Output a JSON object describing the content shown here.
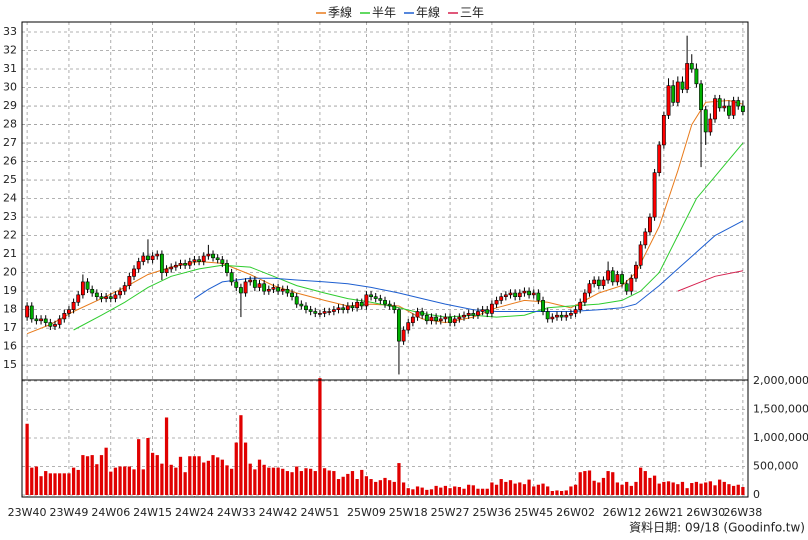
{
  "chart_data": {
    "type": "candlestick",
    "legend": "top",
    "grid": true,
    "footer": "資料日期: 09/18 (Goodinfo.tw)",
    "up_color": "#ff0000",
    "down_color": "#00b000",
    "xlim": [
      -1.1,
      155.1
    ],
    "xticks": [
      {
        "value": 0,
        "label": "23W40"
      },
      {
        "value": 9,
        "label": "23W49"
      },
      {
        "value": 18,
        "label": "24W06"
      },
      {
        "value": 27,
        "label": "24W15"
      },
      {
        "value": 36,
        "label": "24W24"
      },
      {
        "value": 45,
        "label": "24W33"
      },
      {
        "value": 54,
        "label": "24W42"
      },
      {
        "value": 63,
        "label": "24W51"
      },
      {
        "value": 73,
        "label": "25W09"
      },
      {
        "value": 82,
        "label": "25W18"
      },
      {
        "value": 91,
        "label": "25W27"
      },
      {
        "value": 100,
        "label": "25W36"
      },
      {
        "value": 109,
        "label": "25W45"
      },
      {
        "value": 118,
        "label": "26W02"
      },
      {
        "value": 128,
        "label": "26W12"
      },
      {
        "value": 137,
        "label": "26W21"
      },
      {
        "value": 146,
        "label": "26W30"
      },
      {
        "value": 154,
        "label": "26W38"
      }
    ],
    "ylim": [
      14.2,
      33.54
    ],
    "yticks": [
      15,
      16,
      17,
      18,
      19,
      20,
      21,
      22,
      23,
      24,
      25,
      26,
      27,
      28,
      29,
      30,
      31,
      32,
      33
    ],
    "open": [
      17.6,
      18.2,
      17.5,
      17.4,
      17.5,
      17.3,
      17.1,
      17.2,
      17.5,
      17.8,
      18.0,
      18.4,
      18.8,
      19.5,
      19.1,
      18.9,
      18.7,
      18.6,
      18.7,
      18.6,
      18.8,
      19.0,
      19.3,
      19.8,
      20.2,
      20.6,
      20.9,
      20.7,
      20.9,
      21.0,
      20.0,
      20.2,
      20.3,
      20.4,
      20.5,
      20.4,
      20.6,
      20.7,
      20.6,
      20.9,
      21.0,
      20.8,
      20.7,
      20.5,
      20.0,
      19.5,
      19.2,
      18.9,
      19.5,
      19.6,
      19.2,
      19.4,
      19.0,
      19.1,
      19.2,
      19.0,
      19.1,
      18.9,
      18.7,
      18.3,
      18.2,
      18.0,
      17.9,
      17.8,
      17.8,
      17.9,
      17.9,
      18.0,
      18.1,
      18.0,
      18.2,
      18.1,
      18.4,
      18.2,
      18.8,
      18.7,
      18.6,
      18.5,
      18.3,
      18.2,
      18.0,
      16.3,
      16.9,
      17.3,
      17.6,
      17.9,
      17.7,
      17.4,
      17.6,
      17.4,
      17.5,
      17.6,
      17.3,
      17.5,
      17.6,
      17.7,
      17.8,
      17.7,
      17.9,
      18.0,
      17.8,
      18.3,
      18.5,
      18.7,
      18.8,
      18.9,
      18.7,
      18.9,
      19.0,
      18.8,
      18.9,
      18.5,
      17.9,
      17.5,
      17.6,
      17.7,
      17.6,
      17.7,
      17.8,
      18.0,
      18.4,
      18.9,
      19.4,
      19.6,
      19.3,
      19.6,
      20.1,
      19.5,
      19.9,
      19.4,
      19.0,
      19.7,
      20.4,
      21.5,
      22.2,
      23.0,
      25.4,
      26.9,
      28.5,
      30.1,
      29.2,
      30.3,
      29.9,
      31.3,
      31.0,
      30.2,
      28.8,
      27.6,
      28.3,
      29.4,
      28.9,
      29.0,
      28.5,
      29.3,
      29.0
    ],
    "high": [
      18.4,
      18.4,
      17.7,
      17.7,
      17.7,
      17.5,
      17.4,
      17.7,
      18.0,
      18.2,
      18.6,
      19.0,
      19.9,
      19.7,
      19.3,
      19.1,
      18.9,
      18.9,
      18.9,
      19.0,
      19.2,
      19.5,
      20.0,
      20.4,
      20.8,
      21.1,
      21.8,
      21.1,
      21.2,
      21.2,
      20.4,
      20.5,
      20.6,
      20.7,
      20.7,
      20.8,
      20.9,
      20.9,
      21.1,
      21.5,
      21.2,
      21.0,
      20.9,
      20.7,
      20.2,
      19.7,
      19.4,
      19.7,
      19.8,
      19.8,
      19.6,
      19.6,
      19.3,
      19.4,
      19.4,
      19.3,
      19.3,
      19.1,
      18.9,
      18.5,
      18.4,
      18.2,
      18.1,
      18.0,
      18.1,
      18.1,
      18.2,
      18.3,
      18.3,
      18.4,
      18.4,
      18.6,
      18.6,
      19.0,
      19.0,
      18.9,
      18.8,
      18.7,
      18.5,
      18.4,
      18.1,
      17.1,
      17.5,
      17.8,
      18.1,
      18.1,
      17.9,
      17.8,
      17.8,
      17.7,
      17.8,
      17.8,
      17.7,
      17.8,
      17.9,
      18.0,
      18.0,
      18.1,
      18.2,
      18.2,
      18.5,
      18.7,
      18.9,
      19.0,
      19.1,
      19.1,
      19.1,
      19.2,
      19.2,
      19.1,
      19.1,
      18.7,
      18.1,
      17.8,
      17.9,
      17.9,
      17.9,
      18.0,
      18.2,
      18.6,
      19.1,
      19.6,
      19.8,
      19.8,
      19.8,
      20.6,
      20.3,
      20.1,
      20.1,
      19.6,
      19.9,
      20.6,
      21.7,
      22.4,
      23.2,
      25.6,
      27.1,
      28.7,
      30.5,
      30.4,
      30.6,
      30.6,
      32.8,
      31.8,
      31.3,
      30.4,
      29.0,
      28.6,
      29.6,
      29.6,
      29.4,
      29.3,
      29.5,
      29.5,
      29.3
    ],
    "low": [
      17.4,
      17.3,
      17.2,
      17.2,
      17.1,
      16.9,
      16.9,
      17.0,
      17.3,
      17.6,
      17.8,
      18.2,
      18.6,
      18.9,
      18.7,
      18.5,
      18.4,
      18.4,
      18.4,
      18.4,
      18.6,
      18.8,
      19.1,
      19.6,
      20.0,
      20.4,
      20.5,
      20.5,
      20.7,
      19.6,
      19.8,
      20.0,
      20.1,
      20.2,
      20.2,
      20.2,
      20.4,
      20.4,
      20.4,
      20.7,
      20.6,
      20.5,
      20.3,
      19.8,
      19.3,
      19.0,
      17.6,
      18.7,
      19.3,
      19.0,
      19.0,
      18.8,
      18.8,
      18.9,
      18.8,
      18.8,
      18.7,
      18.5,
      18.1,
      18.0,
      17.8,
      17.7,
      17.6,
      17.6,
      17.6,
      17.7,
      17.7,
      17.8,
      17.8,
      17.8,
      17.9,
      17.9,
      18.0,
      18.0,
      18.5,
      18.4,
      18.3,
      18.1,
      18.0,
      17.8,
      14.5,
      16.1,
      16.7,
      17.1,
      17.4,
      17.5,
      17.2,
      17.2,
      17.2,
      17.2,
      17.3,
      17.1,
      17.1,
      17.3,
      17.4,
      17.5,
      17.5,
      17.5,
      17.7,
      17.6,
      17.6,
      18.1,
      18.3,
      18.5,
      18.6,
      18.5,
      18.5,
      18.7,
      18.6,
      18.6,
      18.3,
      17.7,
      17.3,
      17.3,
      17.4,
      17.4,
      17.4,
      17.5,
      17.6,
      17.8,
      18.2,
      18.7,
      19.2,
      19.1,
      19.1,
      19.4,
      19.3,
      19.3,
      19.2,
      18.8,
      18.8,
      19.5,
      20.2,
      21.3,
      22.0,
      22.8,
      25.2,
      26.7,
      28.3,
      29.0,
      29.0,
      29.7,
      29.7,
      30.8,
      30.0,
      25.7,
      26.9,
      27.4,
      28.1,
      28.7,
      28.7,
      28.3,
      28.3,
      28.8,
      28.5
    ],
    "close": [
      18.2,
      17.5,
      17.4,
      17.5,
      17.3,
      17.1,
      17.2,
      17.5,
      17.8,
      18.0,
      18.4,
      18.8,
      19.5,
      19.1,
      18.9,
      18.7,
      18.6,
      18.7,
      18.6,
      18.8,
      19.0,
      19.3,
      19.8,
      20.2,
      20.6,
      20.9,
      20.7,
      20.9,
      21.0,
      20.0,
      20.2,
      20.3,
      20.4,
      20.5,
      20.4,
      20.6,
      20.7,
      20.6,
      20.9,
      21.0,
      20.8,
      20.7,
      20.5,
      20.0,
      19.5,
      19.2,
      18.9,
      19.5,
      19.6,
      19.2,
      19.4,
      19.0,
      19.1,
      19.2,
      19.0,
      19.1,
      18.9,
      18.7,
      18.3,
      18.2,
      18.0,
      17.9,
      17.8,
      17.8,
      17.9,
      17.9,
      18.0,
      18.1,
      18.0,
      18.2,
      18.1,
      18.4,
      18.2,
      18.8,
      18.7,
      18.6,
      18.5,
      18.3,
      18.2,
      18.0,
      16.3,
      16.9,
      17.3,
      17.6,
      17.9,
      17.7,
      17.4,
      17.6,
      17.4,
      17.5,
      17.6,
      17.3,
      17.5,
      17.6,
      17.7,
      17.8,
      17.7,
      17.9,
      18.0,
      17.8,
      18.3,
      18.5,
      18.7,
      18.8,
      18.9,
      18.7,
      18.9,
      19.0,
      18.8,
      18.9,
      18.5,
      17.9,
      17.5,
      17.6,
      17.7,
      17.6,
      17.7,
      17.8,
      18.0,
      18.4,
      18.9,
      19.4,
      19.6,
      19.3,
      19.6,
      20.1,
      19.5,
      19.9,
      19.4,
      19.0,
      19.7,
      20.4,
      21.5,
      22.2,
      23.0,
      25.4,
      26.9,
      28.5,
      30.1,
      29.2,
      30.3,
      29.9,
      31.3,
      31.0,
      30.2,
      28.8,
      27.6,
      28.3,
      29.4,
      28.9,
      29.0,
      28.5,
      29.3,
      29.0,
      28.7
    ],
    "series": [
      {
        "name": "季線",
        "color": "#e87b1c",
        "x": [
          0,
          5,
          10,
          16,
          21,
          26,
          31,
          37,
          42,
          48,
          53,
          58,
          64,
          69,
          74,
          80,
          85,
          90,
          96,
          101,
          107,
          112,
          117,
          123,
          128,
          131,
          136,
          140,
          143,
          146,
          151,
          154
        ],
        "values": [
          16.7,
          17.2,
          17.9,
          18.6,
          19.2,
          19.9,
          20.3,
          20.6,
          20.5,
          19.9,
          19.3,
          18.9,
          18.5,
          18.2,
          18.3,
          18.2,
          17.5,
          17.3,
          17.6,
          18.1,
          18.5,
          18.4,
          18.1,
          18.9,
          19.3,
          20.0,
          22.5,
          25.5,
          28.0,
          29.2,
          29.3,
          29.1
        ]
      },
      {
        "name": "半年",
        "color": "#2ecc2e",
        "x": [
          10,
          16,
          21,
          26,
          31,
          37,
          42,
          48,
          53,
          58,
          64,
          69,
          74,
          80,
          85,
          90,
          96,
          101,
          107,
          112,
          117,
          123,
          128,
          132,
          136,
          140,
          144,
          148,
          154
        ],
        "values": [
          16.9,
          17.7,
          18.4,
          19.2,
          19.8,
          20.2,
          20.4,
          20.3,
          19.8,
          19.3,
          18.9,
          18.6,
          18.4,
          18.1,
          17.8,
          17.6,
          17.7,
          17.6,
          17.7,
          18.1,
          18.2,
          18.3,
          18.5,
          19.0,
          20.0,
          22.0,
          24.0,
          25.2,
          27.0
        ]
      },
      {
        "name": "年線",
        "color": "#1e5fd0",
        "x": [
          36,
          39,
          42,
          48,
          53,
          58,
          64,
          69,
          74,
          80,
          85,
          90,
          96,
          101,
          107,
          112,
          117,
          123,
          128,
          131,
          136,
          140,
          144,
          148,
          154
        ],
        "values": [
          18.6,
          19.1,
          19.5,
          19.7,
          19.7,
          19.6,
          19.5,
          19.4,
          19.2,
          18.9,
          18.6,
          18.3,
          18.0,
          17.9,
          17.9,
          17.9,
          17.9,
          18.0,
          18.1,
          18.3,
          19.3,
          20.2,
          21.1,
          22.0,
          22.8
        ]
      },
      {
        "name": "三年",
        "color": "#d6204e",
        "x": [
          140,
          144,
          148,
          154
        ],
        "values": [
          19.0,
          19.4,
          19.8,
          20.1
        ]
      }
    ],
    "volume": {
      "color": "#e00000",
      "y2lim": [
        0,
        2000000
      ],
      "y2ticks": [
        0,
        {
          "value": 500000,
          "label": "500,000"
        },
        {
          "value": 1000000,
          "label": "1,000,000"
        },
        {
          "value": 1500000,
          "label": "1,500,000"
        },
        {
          "value": 2000000,
          "label": "2,000,000"
        }
      ],
      "values": [
        1250000,
        480000,
        500000,
        330000,
        420000,
        380000,
        380000,
        380000,
        380000,
        380000,
        480000,
        440000,
        700000,
        680000,
        700000,
        540000,
        700000,
        830000,
        410000,
        480000,
        500000,
        500000,
        500000,
        450000,
        980000,
        450000,
        1000000,
        740000,
        700000,
        550000,
        1360000,
        530000,
        480000,
        670000,
        400000,
        680000,
        680000,
        680000,
        570000,
        600000,
        700000,
        660000,
        620000,
        520000,
        460000,
        920000,
        1400000,
        920000,
        550000,
        450000,
        620000,
        530000,
        480000,
        480000,
        480000,
        460000,
        420000,
        400000,
        500000,
        420000,
        470000,
        460000,
        420000,
        2050000,
        470000,
        430000,
        420000,
        280000,
        320000,
        370000,
        420000,
        280000,
        440000,
        330000,
        280000,
        230000,
        260000,
        300000,
        260000,
        230000,
        560000,
        220000,
        120000,
        100000,
        150000,
        130000,
        90000,
        100000,
        160000,
        130000,
        160000,
        120000,
        150000,
        140000,
        110000,
        180000,
        170000,
        110000,
        110000,
        110000,
        220000,
        180000,
        280000,
        230000,
        260000,
        200000,
        220000,
        190000,
        270000,
        150000,
        180000,
        200000,
        150000,
        70000,
        80000,
        70000,
        80000,
        150000,
        180000,
        400000,
        420000,
        430000,
        250000,
        220000,
        300000,
        420000,
        400000,
        220000,
        180000,
        230000,
        160000,
        230000,
        480000,
        420000,
        300000,
        340000,
        200000,
        230000,
        240000,
        220000,
        190000,
        230000,
        120000,
        210000,
        230000,
        200000,
        220000,
        240000,
        170000,
        270000,
        230000,
        190000,
        160000,
        180000,
        140000
      ]
    }
  }
}
